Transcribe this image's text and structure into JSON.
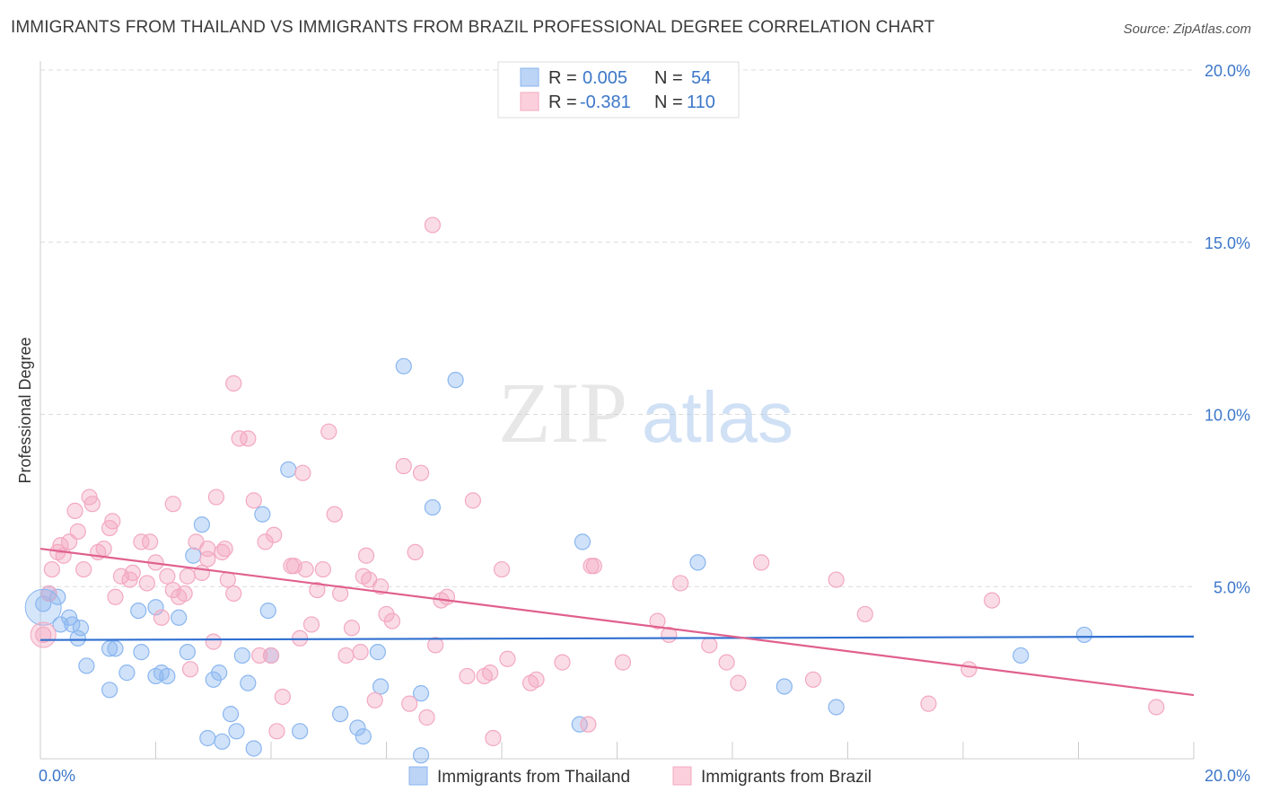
{
  "title": "IMMIGRANTS FROM THAILAND VS IMMIGRANTS FROM BRAZIL PROFESSIONAL DEGREE CORRELATION CHART",
  "source": "Source: ZipAtlas.com",
  "watermark": {
    "zip": "ZIP",
    "atlas": "atlas"
  },
  "legend_top": {
    "r_label": "R =",
    "n_label": "N =",
    "rows": [
      {
        "r": "0.005",
        "n": "54",
        "color": "#8ab6f0"
      },
      {
        "r": "-0.381",
        "n": "110",
        "color": "#f3a8c0"
      }
    ]
  },
  "chart_data": {
    "type": "scatter",
    "ylabel": "Professional Degree",
    "xlim": [
      0,
      20
    ],
    "ylim": [
      0,
      20
    ],
    "x_tick_labels": [
      "0.0%",
      "20.0%"
    ],
    "y_ticks": [
      5,
      10,
      15,
      20
    ],
    "y_tick_labels": [
      "5.0%",
      "10.0%",
      "15.0%",
      "20.0%"
    ],
    "grid": true,
    "series": [
      {
        "name": "Immigrants from Thailand",
        "color": "#8ab6f0",
        "line_color": "#2f6fd0",
        "trend": [
          [
            0,
            3.45
          ],
          [
            20,
            3.55
          ]
        ],
        "points": [
          [
            0.05,
            4.5
          ],
          [
            0.15,
            4.8
          ],
          [
            0.3,
            4.7
          ],
          [
            0.35,
            3.9
          ],
          [
            0.5,
            4.1
          ],
          [
            0.55,
            3.9
          ],
          [
            0.7,
            3.8
          ],
          [
            0.65,
            3.5
          ],
          [
            0.8,
            2.7
          ],
          [
            1.2,
            2.0
          ],
          [
            1.2,
            3.2
          ],
          [
            1.3,
            3.2
          ],
          [
            1.5,
            2.5
          ],
          [
            1.7,
            4.3
          ],
          [
            1.75,
            3.1
          ],
          [
            2.0,
            4.4
          ],
          [
            2.0,
            2.4
          ],
          [
            2.1,
            2.5
          ],
          [
            2.2,
            2.4
          ],
          [
            2.4,
            4.1
          ],
          [
            2.55,
            3.1
          ],
          [
            2.65,
            5.9
          ],
          [
            2.8,
            6.8
          ],
          [
            2.9,
            0.6
          ],
          [
            3.0,
            2.3
          ],
          [
            3.1,
            2.5
          ],
          [
            3.15,
            0.5
          ],
          [
            3.3,
            1.3
          ],
          [
            3.4,
            0.8
          ],
          [
            3.5,
            3.0
          ],
          [
            3.6,
            2.2
          ],
          [
            3.7,
            0.3
          ],
          [
            3.85,
            7.1
          ],
          [
            3.95,
            4.3
          ],
          [
            4.0,
            3.0
          ],
          [
            4.3,
            8.4
          ],
          [
            4.5,
            0.8
          ],
          [
            5.2,
            1.3
          ],
          [
            5.5,
            0.9
          ],
          [
            5.6,
            0.65
          ],
          [
            5.85,
            3.1
          ],
          [
            5.9,
            2.1
          ],
          [
            6.3,
            11.4
          ],
          [
            6.6,
            1.9
          ],
          [
            6.8,
            7.3
          ],
          [
            7.2,
            11.0
          ],
          [
            9.35,
            1.0
          ],
          [
            9.4,
            6.3
          ],
          [
            11.4,
            5.7
          ],
          [
            12.9,
            2.1
          ],
          [
            13.8,
            1.5
          ],
          [
            17.0,
            3.0
          ],
          [
            18.1,
            3.6
          ],
          [
            6.6,
            0.1
          ]
        ]
      },
      {
        "name": "Immigrants from Brazil",
        "color": "#f3a8c0",
        "line_color": "#e0608e",
        "trend": [
          [
            0,
            6.1
          ],
          [
            20,
            1.85
          ]
        ],
        "points": [
          [
            0.05,
            3.6
          ],
          [
            0.15,
            4.8
          ],
          [
            0.2,
            5.5
          ],
          [
            0.3,
            6.0
          ],
          [
            0.35,
            6.2
          ],
          [
            0.4,
            5.9
          ],
          [
            0.5,
            6.3
          ],
          [
            0.6,
            7.2
          ],
          [
            0.65,
            6.6
          ],
          [
            0.75,
            5.5
          ],
          [
            0.85,
            7.6
          ],
          [
            0.9,
            7.4
          ],
          [
            1.0,
            6.0
          ],
          [
            1.1,
            6.1
          ],
          [
            1.2,
            6.7
          ],
          [
            1.25,
            6.9
          ],
          [
            1.3,
            4.7
          ],
          [
            1.4,
            5.3
          ],
          [
            1.55,
            5.2
          ],
          [
            1.6,
            5.4
          ],
          [
            1.75,
            6.3
          ],
          [
            1.85,
            5.1
          ],
          [
            1.9,
            6.3
          ],
          [
            2.0,
            5.7
          ],
          [
            2.1,
            4.1
          ],
          [
            2.2,
            5.3
          ],
          [
            2.3,
            4.9
          ],
          [
            2.3,
            7.4
          ],
          [
            2.4,
            4.7
          ],
          [
            2.5,
            4.8
          ],
          [
            2.55,
            5.3
          ],
          [
            2.6,
            2.6
          ],
          [
            2.7,
            6.3
          ],
          [
            2.8,
            5.4
          ],
          [
            2.9,
            6.1
          ],
          [
            3.0,
            3.4
          ],
          [
            3.05,
            7.6
          ],
          [
            3.15,
            6.0
          ],
          [
            3.25,
            5.2
          ],
          [
            3.35,
            4.8
          ],
          [
            3.35,
            10.9
          ],
          [
            3.45,
            9.3
          ],
          [
            3.6,
            9.3
          ],
          [
            3.7,
            7.5
          ],
          [
            3.8,
            3.0
          ],
          [
            3.9,
            6.3
          ],
          [
            4.0,
            3.0
          ],
          [
            4.05,
            6.5
          ],
          [
            4.1,
            0.8
          ],
          [
            4.2,
            1.8
          ],
          [
            4.35,
            5.6
          ],
          [
            4.5,
            3.5
          ],
          [
            4.55,
            8.3
          ],
          [
            4.6,
            5.5
          ],
          [
            4.7,
            3.9
          ],
          [
            4.8,
            4.9
          ],
          [
            4.9,
            5.5
          ],
          [
            5.0,
            9.5
          ],
          [
            5.1,
            7.1
          ],
          [
            5.2,
            4.8
          ],
          [
            5.3,
            3.0
          ],
          [
            5.4,
            3.8
          ],
          [
            5.55,
            3.1
          ],
          [
            5.65,
            5.9
          ],
          [
            5.7,
            5.2
          ],
          [
            5.8,
            1.7
          ],
          [
            5.9,
            5.0
          ],
          [
            6.0,
            4.2
          ],
          [
            6.1,
            4.0
          ],
          [
            6.3,
            8.5
          ],
          [
            6.4,
            1.6
          ],
          [
            6.5,
            6.0
          ],
          [
            6.6,
            8.3
          ],
          [
            6.7,
            1.2
          ],
          [
            6.85,
            3.3
          ],
          [
            6.95,
            4.6
          ],
          [
            7.05,
            4.7
          ],
          [
            7.4,
            2.4
          ],
          [
            7.5,
            7.5
          ],
          [
            7.7,
            2.4
          ],
          [
            7.8,
            2.5
          ],
          [
            7.85,
            0.6
          ],
          [
            8.0,
            5.5
          ],
          [
            8.1,
            2.9
          ],
          [
            8.5,
            2.2
          ],
          [
            8.6,
            2.3
          ],
          [
            9.05,
            2.8
          ],
          [
            9.5,
            1.0
          ],
          [
            9.55,
            5.6
          ],
          [
            9.6,
            5.6
          ],
          [
            10.1,
            2.8
          ],
          [
            10.7,
            4.0
          ],
          [
            10.9,
            3.6
          ],
          [
            11.6,
            3.3
          ],
          [
            11.9,
            2.8
          ],
          [
            12.1,
            2.2
          ],
          [
            12.5,
            5.7
          ],
          [
            13.4,
            2.3
          ],
          [
            13.8,
            5.2
          ],
          [
            14.3,
            4.2
          ],
          [
            15.4,
            1.6
          ],
          [
            16.1,
            2.6
          ],
          [
            16.5,
            4.6
          ],
          [
            19.35,
            1.5
          ],
          [
            6.8,
            15.5
          ],
          [
            4.4,
            5.6
          ],
          [
            3.2,
            6.1
          ],
          [
            5.6,
            5.3
          ],
          [
            2.9,
            5.8
          ],
          [
            11.1,
            5.1
          ]
        ]
      }
    ]
  }
}
